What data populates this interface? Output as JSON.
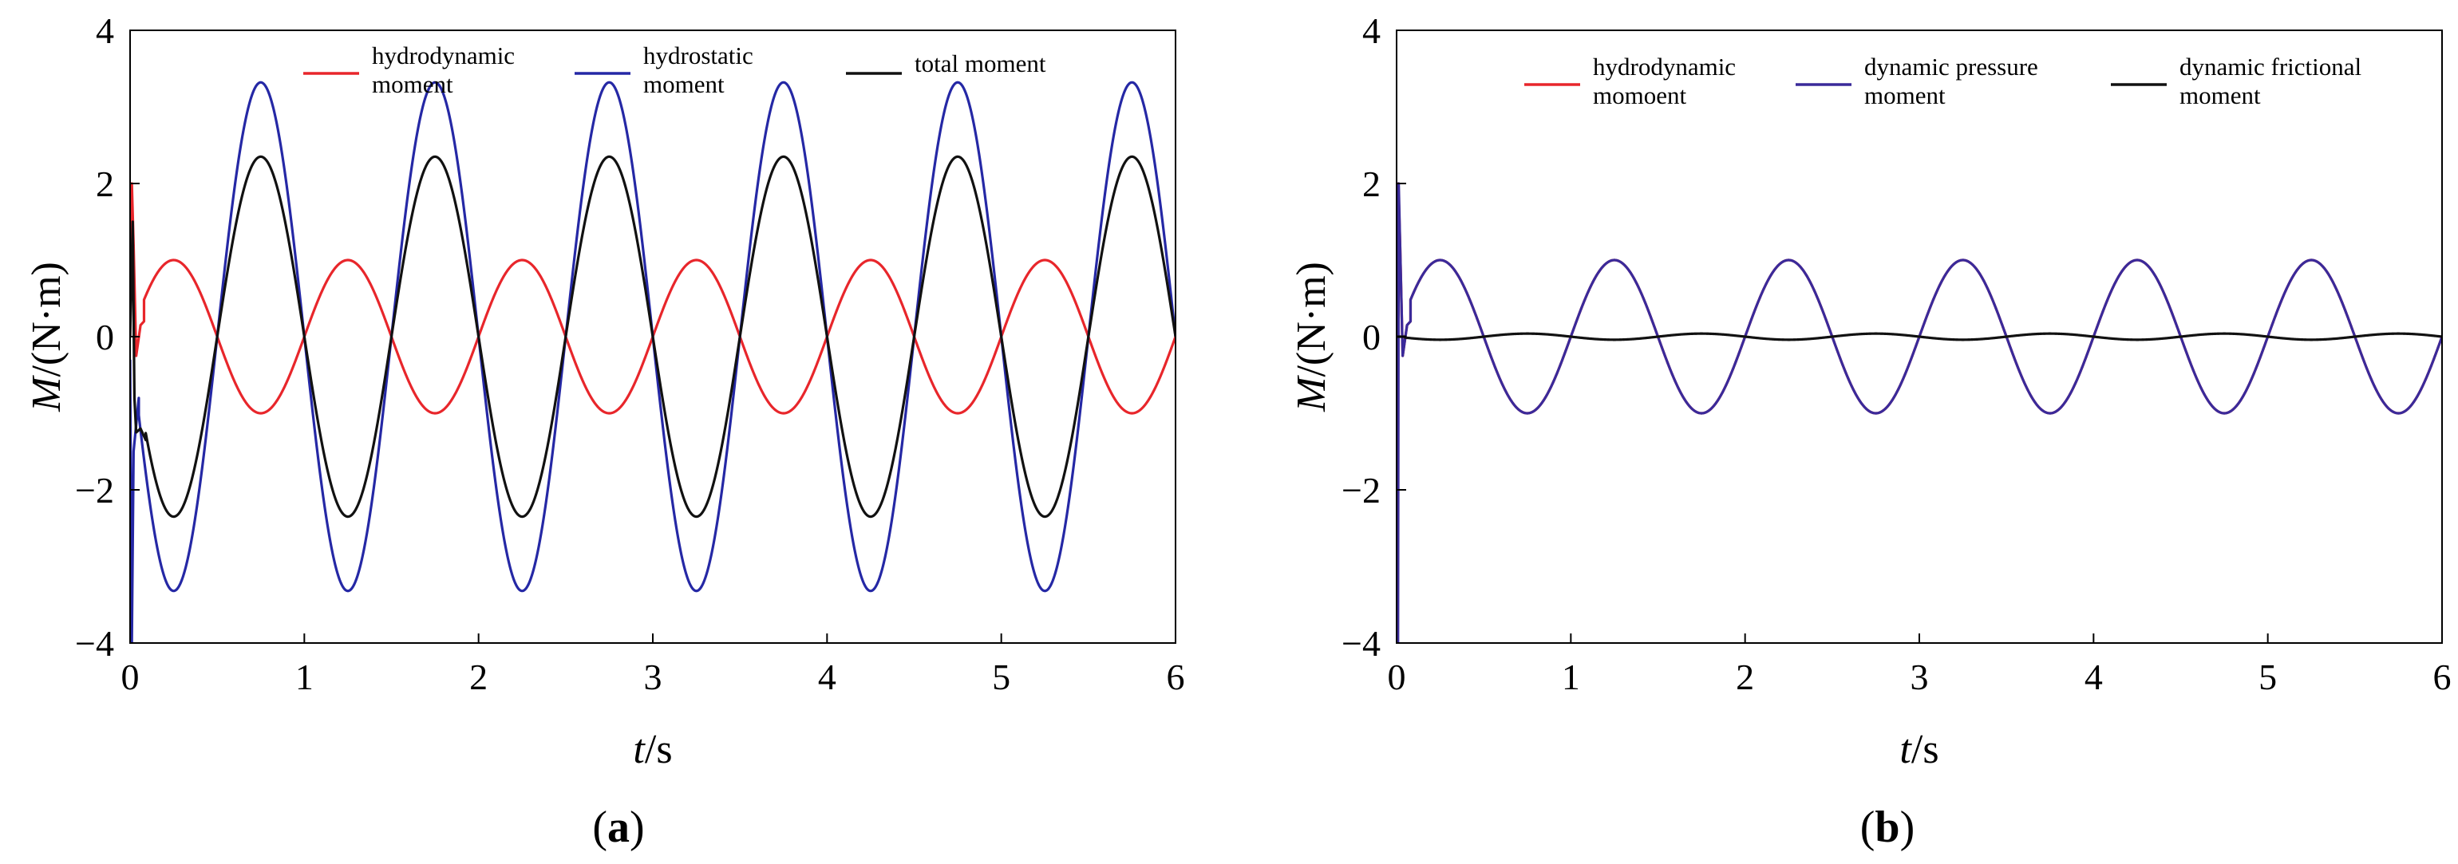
{
  "chart_data": [
    {
      "type": "line",
      "panel_label": "a",
      "xlabel": {
        "var": "t",
        "unit": "s"
      },
      "ylabel": {
        "var": "M",
        "unit": "(N·m)"
      },
      "xlim": [
        0,
        6
      ],
      "ylim": [
        -4,
        4
      ],
      "xticks": [
        0,
        1,
        2,
        3,
        4,
        5,
        6
      ],
      "yticks": [
        -4,
        -2,
        0,
        2,
        4
      ],
      "ytick_labels": [
        "−4",
        "−2",
        "0",
        "2",
        "4"
      ],
      "grid": false,
      "legend_position": "top",
      "series": [
        {
          "name": [
            "hydrodynamic",
            "moment"
          ],
          "color": "#e8262b",
          "model": {
            "kind": "sine",
            "amplitude": 1.0,
            "period": 1.0,
            "phase": 0.0,
            "offset": 0
          },
          "transient": [
            [
              0,
              0
            ],
            [
              0.01,
              2.0
            ],
            [
              0.02,
              1.2
            ],
            [
              0.035,
              -0.25
            ],
            [
              0.06,
              0.15
            ],
            [
              0.08,
              0.2
            ]
          ]
        },
        {
          "name": [
            "hydrostatic",
            "moment"
          ],
          "color": "#2528a5",
          "model": {
            "kind": "sine",
            "amplitude": 3.32,
            "period": 1.0,
            "phase": 0.5,
            "offset": 0
          },
          "transient": [
            [
              0,
              -0.3
            ],
            [
              0.01,
              -4.0
            ],
            [
              0.02,
              -1.5
            ],
            [
              0.05,
              -0.8
            ]
          ]
        },
        {
          "name": [
            "total moment"
          ],
          "color": "#111111",
          "model": {
            "kind": "sine",
            "amplitude": 2.35,
            "period": 1.0,
            "phase": 0.5,
            "offset": 0
          },
          "transient": [
            [
              0,
              0
            ],
            [
              0.015,
              1.5
            ],
            [
              0.025,
              -0.8
            ],
            [
              0.035,
              -1.25
            ],
            [
              0.06,
              -1.2
            ],
            [
              0.09,
              -1.35
            ]
          ]
        }
      ]
    },
    {
      "type": "line",
      "panel_label": "b",
      "xlabel": {
        "var": "t",
        "unit": "s"
      },
      "ylabel": {
        "var": "M",
        "unit": "(N·m)"
      },
      "xlim": [
        0,
        6
      ],
      "ylim": [
        -4,
        4
      ],
      "xticks": [
        0,
        1,
        2,
        3,
        4,
        5,
        6
      ],
      "yticks": [
        -4,
        -2,
        0,
        2,
        4
      ],
      "ytick_labels": [
        "−4",
        "−2",
        "0",
        "2",
        "4"
      ],
      "grid": false,
      "legend_position": "top",
      "series": [
        {
          "name": [
            "hydrodynamic",
            "momoent"
          ],
          "color": "#e8262b",
          "model": {
            "kind": "sine",
            "amplitude": 1.0,
            "period": 1.0,
            "phase": 0.0,
            "offset": 0
          },
          "transient": [
            [
              0,
              0
            ],
            [
              0.01,
              2.0
            ],
            [
              0.02,
              1.2
            ],
            [
              0.035,
              -0.25
            ],
            [
              0.06,
              0.15
            ],
            [
              0.08,
              0.2
            ]
          ]
        },
        {
          "name": [
            "dynamic pressure",
            "moment"
          ],
          "color": "#3a2a9a",
          "model": {
            "kind": "sine",
            "amplitude": 1.0,
            "period": 1.0,
            "phase": 0.0,
            "offset": 0
          },
          "transient": [
            [
              0,
              0
            ],
            [
              0.008,
              -4.0
            ],
            [
              0.012,
              2.0
            ],
            [
              0.02,
              1.2
            ],
            [
              0.035,
              -0.25
            ],
            [
              0.06,
              0.15
            ],
            [
              0.08,
              0.2
            ]
          ]
        },
        {
          "name": [
            "dynamic frictional",
            "moment"
          ],
          "color": "#111111",
          "model": {
            "kind": "sine",
            "amplitude": 0.04,
            "period": 1.0,
            "phase": 0.5,
            "offset": 0
          },
          "transient": [
            [
              0,
              0
            ],
            [
              0.05,
              0.0
            ]
          ]
        }
      ]
    }
  ]
}
